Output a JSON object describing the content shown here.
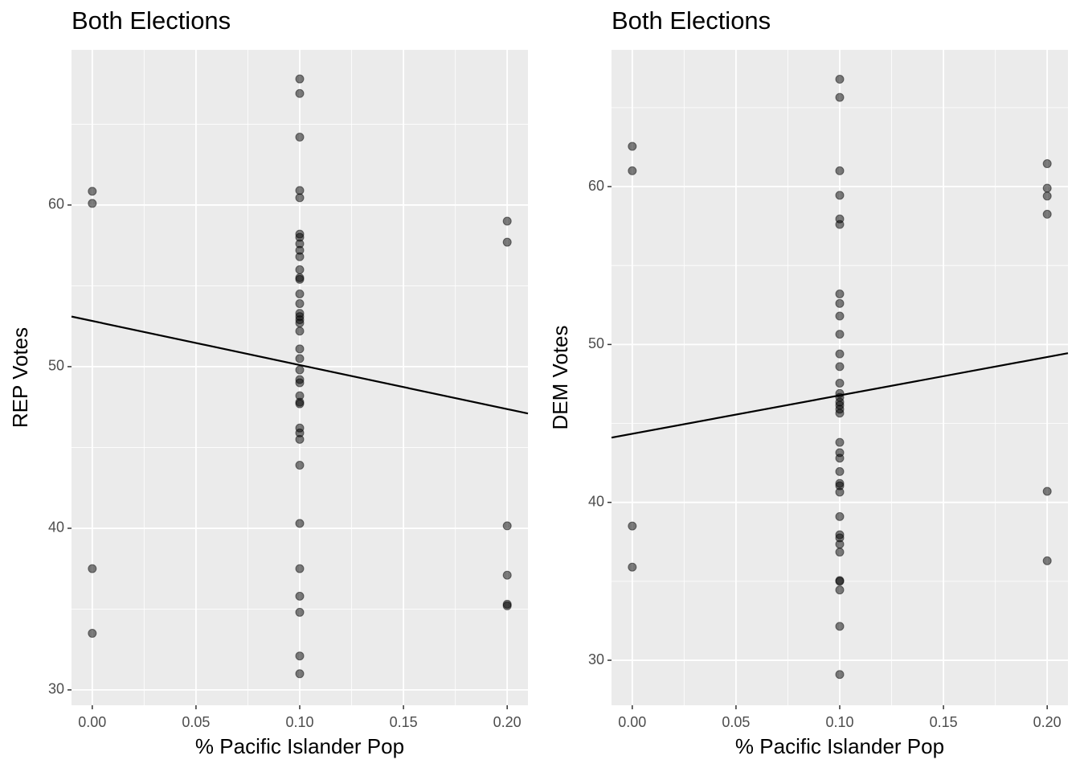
{
  "chart_data": [
    {
      "type": "scatter",
      "title": "Both Elections",
      "x_label": "% Pacific Islander Pop",
      "y_label": "REP Votes",
      "color": "#000000",
      "x": [
        0,
        0,
        0,
        0,
        0.1,
        0.1,
        0.1,
        0.1,
        0.1,
        0.1,
        0.1,
        0.1,
        0.1,
        0.1,
        0.1,
        0.1,
        0.1,
        0.1,
        0.1,
        0.1,
        0.1,
        0.1,
        0.1,
        0.1,
        0.1,
        0.1,
        0.1,
        0.1,
        0.1,
        0.1,
        0.1,
        0.1,
        0.1,
        0.1,
        0.1,
        0.1,
        0.1,
        0.1,
        0.1,
        0.1,
        0.1,
        0.1,
        0.2,
        0.2,
        0.2,
        0.2,
        0.2,
        0.2
      ],
      "values": [
        60.85,
        60.1,
        37.5,
        33.5,
        67.8,
        66.9,
        64.2,
        60.9,
        60.45,
        58.2,
        58.0,
        57.6,
        57.2,
        56.8,
        56.0,
        55.5,
        55.4,
        54.5,
        53.9,
        53.3,
        53.1,
        52.9,
        52.7,
        52.2,
        51.1,
        50.5,
        49.8,
        49.2,
        49.0,
        48.2,
        47.8,
        47.7,
        46.2,
        45.9,
        45.5,
        43.9,
        40.3,
        37.5,
        35.8,
        34.8,
        32.1,
        31.0,
        59.0,
        57.7,
        40.15,
        37.1,
        35.3,
        35.2
      ],
      "trend": {
        "x": [
          -0.01,
          0.21
        ],
        "values": [
          53.1,
          47.1
        ]
      },
      "xlim": [
        -0.01,
        0.21
      ],
      "ylim": [
        29.05,
        69.6
      ],
      "xticks": [
        {
          "value": 0,
          "label": "0.00"
        },
        {
          "value": 0.05,
          "label": "0.05"
        },
        {
          "value": 0.1,
          "label": "0.10"
        },
        {
          "value": 0.15,
          "label": "0.15"
        },
        {
          "value": 0.2,
          "label": "0.20"
        }
      ],
      "yticks": [
        30,
        40,
        50,
        60
      ],
      "xminor": [
        0.025,
        0.075,
        0.125,
        0.175
      ],
      "yminor": [
        35,
        45,
        55,
        65
      ],
      "grid": true
    },
    {
      "type": "scatter",
      "title": "Both Elections",
      "x_label": "% Pacific Islander Pop",
      "y_label": "DEM Votes",
      "color": "#000000",
      "x": [
        0,
        0,
        0,
        0,
        0.1,
        0.1,
        0.1,
        0.1,
        0.1,
        0.1,
        0.1,
        0.1,
        0.1,
        0.1,
        0.1,
        0.1,
        0.1,
        0.1,
        0.1,
        0.1,
        0.1,
        0.1,
        0.1,
        0.1,
        0.1,
        0.1,
        0.1,
        0.1,
        0.1,
        0.1,
        0.1,
        0.1,
        0.1,
        0.1,
        0.1,
        0.1,
        0.1,
        0.1,
        0.1,
        0.1,
        0.2,
        0.2,
        0.2,
        0.2,
        0.2,
        0.2
      ],
      "values": [
        62.55,
        61.0,
        38.5,
        35.9,
        66.8,
        65.65,
        61.0,
        59.45,
        57.95,
        57.6,
        53.2,
        52.6,
        51.8,
        50.65,
        49.4,
        48.6,
        47.55,
        46.9,
        46.65,
        46.35,
        46.15,
        45.9,
        45.65,
        43.8,
        43.15,
        42.8,
        41.95,
        41.2,
        41.05,
        40.65,
        39.1,
        37.95,
        37.75,
        37.35,
        36.85,
        35.05,
        35.0,
        34.45,
        32.15,
        29.1,
        61.45,
        59.9,
        59.4,
        58.25,
        40.7,
        36.3
      ],
      "trend": {
        "x": [
          -0.01,
          0.21
        ],
        "values": [
          44.1,
          49.45
        ]
      },
      "xlim": [
        -0.01,
        0.21
      ],
      "ylim": [
        27.15,
        68.66
      ],
      "xticks": [
        {
          "value": 0,
          "label": "0.00"
        },
        {
          "value": 0.05,
          "label": "0.05"
        },
        {
          "value": 0.1,
          "label": "0.10"
        },
        {
          "value": 0.15,
          "label": "0.15"
        },
        {
          "value": 0.2,
          "label": "0.20"
        }
      ],
      "yticks": [
        30,
        40,
        50,
        60
      ],
      "xminor": [
        0.025,
        0.075,
        0.125,
        0.175
      ],
      "yminor": [
        35,
        45,
        55,
        65
      ],
      "grid": true
    }
  ]
}
